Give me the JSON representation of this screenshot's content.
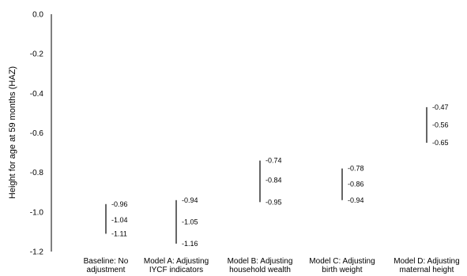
{
  "chart_data": {
    "type": "range",
    "title": "",
    "xlabel": "",
    "ylabel": "Height for age at 59 months (HAZ)",
    "ylim": [
      -1.2,
      0.0
    ],
    "yticks": [
      0.0,
      -0.2,
      -0.4,
      -0.6,
      -0.8,
      -1.0,
      -1.2
    ],
    "ytick_labels": [
      "0.0",
      "-0.2",
      "-0.4",
      "-0.6",
      "-0.8",
      "-1.0",
      "-1.2"
    ],
    "grid": false,
    "legend": "none",
    "categories": [
      [
        "Baseline: No",
        "adjustment"
      ],
      [
        "Model A: Adjusting",
        "IYCF indicators"
      ],
      [
        "Model B: Adjusting",
        "household wealth"
      ],
      [
        "Model C: Adjusting",
        "birth weight"
      ],
      [
        "Model D: Adjusting",
        "maternal height"
      ]
    ],
    "series": [
      {
        "high": -0.96,
        "mid": -1.04,
        "low": -1.11,
        "labels": [
          "-0.96",
          "-1.04",
          "-1.11"
        ]
      },
      {
        "high": -0.94,
        "mid": -1.05,
        "low": -1.16,
        "labels": [
          "-0.94",
          "-1.05",
          "-1.16"
        ]
      },
      {
        "high": -0.74,
        "mid": -0.84,
        "low": -0.95,
        "labels": [
          "-0.74",
          "-0.84",
          "-0.95"
        ]
      },
      {
        "high": -0.78,
        "mid": -0.86,
        "low": -0.94,
        "labels": [
          "-0.78",
          "-0.86",
          "-0.94"
        ]
      },
      {
        "high": -0.47,
        "mid": -0.56,
        "low": -0.65,
        "labels": [
          "-0.47",
          "-0.56",
          "-0.65"
        ]
      }
    ],
    "line_color": "#000000"
  }
}
